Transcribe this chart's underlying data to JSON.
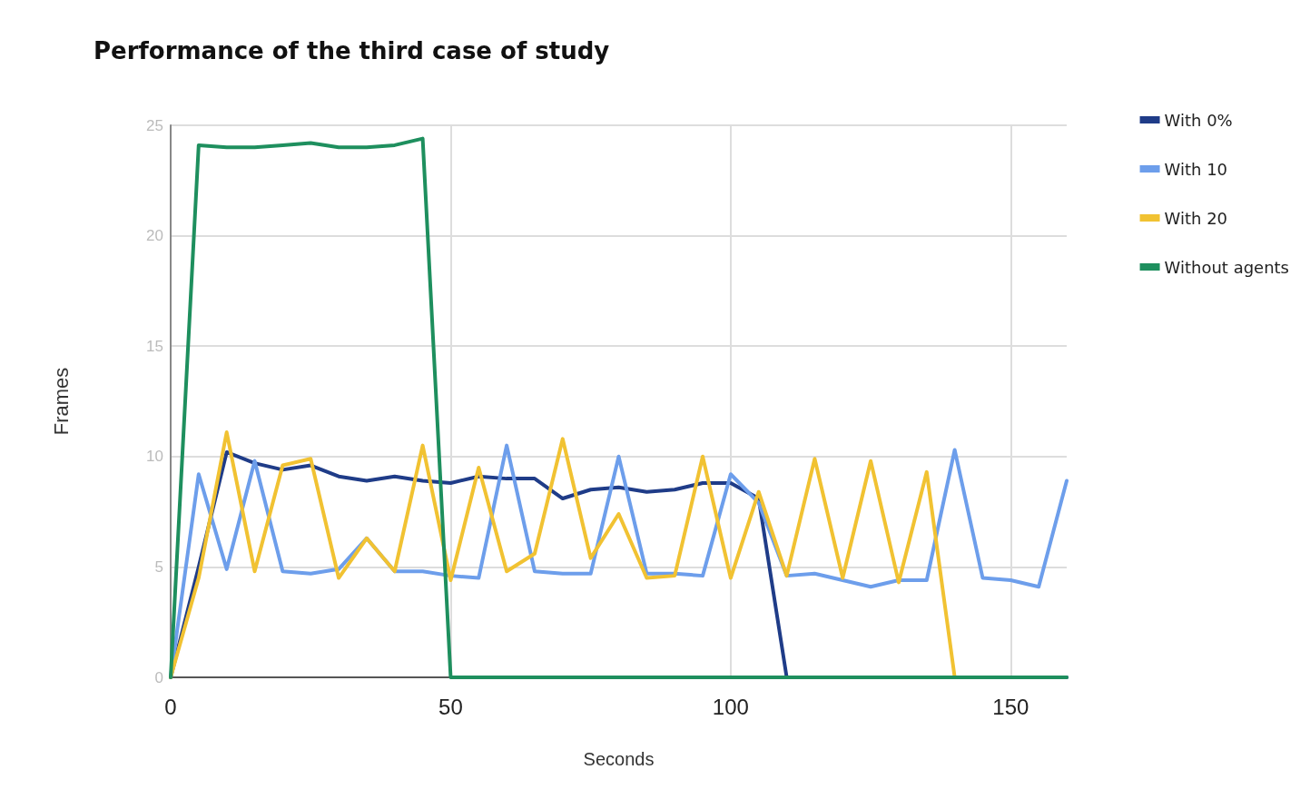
{
  "chart_data": {
    "type": "line",
    "title": "Performance of the third case of study",
    "xlabel": "Seconds",
    "ylabel": "Frames",
    "x": [
      0,
      5,
      10,
      15,
      20,
      25,
      30,
      35,
      40,
      45,
      50,
      55,
      60,
      65,
      70,
      75,
      80,
      85,
      90,
      95,
      100,
      105,
      110,
      115,
      120,
      125,
      130,
      135,
      140,
      145,
      150,
      155,
      160
    ],
    "xlim": [
      0,
      160
    ],
    "xticks": [
      0,
      50,
      100,
      150
    ],
    "ylim": [
      0,
      25
    ],
    "yticks": [
      0,
      5,
      10,
      15,
      20,
      25
    ],
    "grid": true,
    "legend": "top right",
    "marker": "none",
    "line_style": "solid",
    "series": [
      {
        "name": "With 0%",
        "color": "#1f3c88",
        "values": [
          0,
          5,
          10.2,
          9.7,
          9.4,
          9.6,
          9.1,
          8.9,
          9.1,
          8.9,
          8.8,
          9.1,
          9.0,
          9.0,
          8.1,
          8.5,
          8.6,
          8.4,
          8.5,
          8.8,
          8.8,
          8.1,
          0,
          0,
          0,
          0,
          0,
          0,
          0,
          0,
          0,
          0,
          0
        ]
      },
      {
        "name": "With 10",
        "color": "#6d9eeb",
        "values": [
          0,
          9.2,
          4.9,
          9.8,
          4.8,
          4.7,
          4.9,
          6.3,
          4.8,
          4.8,
          4.6,
          4.5,
          10.5,
          4.8,
          4.7,
          4.7,
          10.0,
          4.7,
          4.7,
          4.6,
          9.2,
          7.9,
          4.6,
          4.7,
          4.4,
          4.1,
          4.4,
          4.4,
          10.3,
          4.5,
          4.4,
          4.1,
          8.9
        ]
      },
      {
        "name": "With 20",
        "color": "#f1c232",
        "values": [
          0,
          4.5,
          11.1,
          4.8,
          9.6,
          9.9,
          4.5,
          6.3,
          4.8,
          10.5,
          4.4,
          9.5,
          4.8,
          5.6,
          10.8,
          5.4,
          7.4,
          4.5,
          4.6,
          10.0,
          4.5,
          8.4,
          4.6,
          9.9,
          4.5,
          9.8,
          4.3,
          9.3,
          0,
          null,
          null,
          null,
          null
        ]
      },
      {
        "name": "Without agents",
        "color": "#1e8f5e",
        "values": [
          0,
          24.1,
          24,
          24,
          24.1,
          24.2,
          24,
          24,
          24.1,
          24.4,
          0,
          0,
          0,
          0,
          0,
          0,
          0,
          0,
          0,
          0,
          0,
          0,
          0,
          0,
          0,
          0,
          0,
          0,
          0,
          0,
          0,
          0,
          0
        ]
      }
    ]
  }
}
